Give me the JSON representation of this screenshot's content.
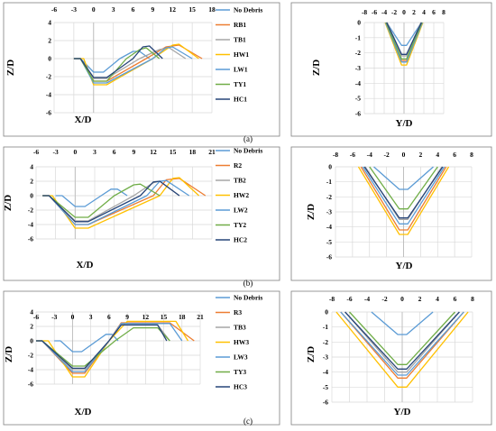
{
  "colors": {
    "No Debris": "#5b9bd5",
    "RB1": "#ed7d31",
    "TB1": "#a5a5a5",
    "HW1": "#ffc000",
    "LW1": "#5b9bd5",
    "TY1": "#70ad47",
    "HC1": "#264478",
    "R2": "#ed7d31",
    "TB2": "#a5a5a5",
    "HW2": "#ffc000",
    "LW2": "#5b9bd5",
    "TY2": "#70ad47",
    "HC2": "#264478",
    "R3": "#ed7d31",
    "TB3": "#a5a5a5",
    "HW3": "#ffc000",
    "LW3": "#5b9bd5",
    "TY3": "#70ad47",
    "HC3": "#264478"
  },
  "panel_labels": [
    "(a)",
    "(b)",
    "(c)"
  ],
  "chart_data": [
    {
      "id": "a-long",
      "type": "line",
      "xlabel": "X/D",
      "ylabel": "Z/D",
      "xlim": [
        -6,
        18
      ],
      "ylim": [
        -6,
        4
      ],
      "xticks": [
        -6,
        -3,
        0,
        3,
        6,
        9,
        12,
        15,
        18
      ],
      "yticks": [
        4,
        2,
        0,
        -2,
        -4,
        -6
      ],
      "grid": true,
      "legend": "right",
      "legend_entries": [
        "No Debris",
        "RB1",
        "TB1",
        "HW1",
        "LW1",
        "TY1",
        "HC1"
      ],
      "series": [
        {
          "name": "No Debris",
          "x": [
            -3,
            -2,
            0,
            1.5,
            4,
            6,
            7,
            8.5
          ],
          "y": [
            0,
            0,
            -1.5,
            -1.5,
            0,
            0.8,
            0.8,
            0
          ]
        },
        {
          "name": "RB1",
          "x": [
            -3,
            -2,
            0,
            2,
            8,
            11,
            13,
            16.5
          ],
          "y": [
            0,
            0,
            -2.5,
            -2.5,
            0,
            1.3,
            1.5,
            0
          ]
        },
        {
          "name": "TB1",
          "x": [
            -3,
            -2,
            0,
            2,
            7,
            10,
            11.5,
            14
          ],
          "y": [
            0,
            0,
            -2.2,
            -2.2,
            0,
            1,
            1.2,
            0
          ]
        },
        {
          "name": "HW1",
          "x": [
            -3,
            -1.5,
            0,
            2,
            9,
            12,
            13,
            16
          ],
          "y": [
            0,
            0,
            -2.9,
            -2.9,
            0,
            1.5,
            1.6,
            0
          ]
        },
        {
          "name": "LW1",
          "x": [
            -3,
            -2,
            0,
            2,
            9,
            11,
            12,
            15
          ],
          "y": [
            0,
            0,
            -2.7,
            -2.7,
            0,
            1.2,
            1.3,
            0
          ]
        },
        {
          "name": "TY1",
          "x": [
            -3,
            -2,
            0,
            2,
            5,
            7,
            8,
            10
          ],
          "y": [
            0,
            0,
            -2.5,
            -2.5,
            0,
            1,
            1.2,
            0
          ]
        },
        {
          "name": "HC1",
          "x": [
            -3,
            -2,
            0,
            2,
            6,
            7.5,
            8.5,
            10.5
          ],
          "y": [
            0,
            0,
            -2.1,
            -2.1,
            0,
            1.3,
            1.4,
            0
          ]
        }
      ]
    },
    {
      "id": "a-trans",
      "type": "line",
      "xlabel": "Y/D",
      "ylabel": "Z/D",
      "xlim": [
        -8,
        8
      ],
      "ylim": [
        -6,
        0
      ],
      "xticks": [
        -8,
        -6,
        -4,
        -2,
        0,
        2,
        4,
        6,
        8
      ],
      "yticks": [
        0,
        -1,
        -2,
        -3,
        -4,
        -5,
        -6
      ],
      "grid": true,
      "series": [
        {
          "name": "No Debris",
          "x": [
            -3.5,
            -0.5,
            0.5,
            3.5
          ],
          "y": [
            0,
            -1.5,
            -1.5,
            0
          ]
        },
        {
          "name": "RB1",
          "x": [
            -3.6,
            -0.5,
            0.5,
            3.6
          ],
          "y": [
            0,
            -2.5,
            -2.5,
            0
          ]
        },
        {
          "name": "TB1",
          "x": [
            -3.4,
            -0.5,
            0.5,
            3.4
          ],
          "y": [
            0,
            -2.2,
            -2.2,
            0
          ]
        },
        {
          "name": "HW1",
          "x": [
            -3.8,
            -0.5,
            0.5,
            3.8
          ],
          "y": [
            0,
            -2.8,
            -2.8,
            0
          ]
        },
        {
          "name": "LW1",
          "x": [
            -3.7,
            -0.5,
            0.5,
            3.7
          ],
          "y": [
            0,
            -2.6,
            -2.6,
            0
          ]
        },
        {
          "name": "TY1",
          "x": [
            -3.6,
            -0.5,
            0.5,
            3.6
          ],
          "y": [
            0,
            -2.4,
            -2.4,
            0
          ]
        },
        {
          "name": "HC1",
          "x": [
            -3.5,
            -0.5,
            0.5,
            3.5
          ],
          "y": [
            0,
            -2.1,
            -2.1,
            0
          ]
        }
      ]
    },
    {
      "id": "b-long",
      "type": "line",
      "xlabel": "X/D",
      "ylabel": "Z/D",
      "xlim": [
        -6,
        21
      ],
      "ylim": [
        -6,
        4
      ],
      "xticks": [
        -6,
        -3,
        0,
        3,
        6,
        9,
        12,
        15,
        18,
        21
      ],
      "yticks": [
        4,
        2,
        0,
        -2,
        -4,
        -6
      ],
      "grid": true,
      "legend": "right",
      "legend_entries": [
        "No Debris",
        "R2",
        "TB2",
        "HW2",
        "LW2",
        "TY2",
        "HC2"
      ],
      "series": [
        {
          "name": "No Debris",
          "x": [
            -3,
            -2,
            0,
            1.5,
            4,
            5.5,
            6.5,
            8
          ],
          "y": [
            0,
            0,
            -1.5,
            -1.5,
            0,
            0.9,
            0.9,
            0
          ]
        },
        {
          "name": "R2",
          "x": [
            -5,
            -4,
            0,
            2,
            12,
            14,
            16,
            20
          ],
          "y": [
            0,
            0,
            -4,
            -4,
            0,
            2.2,
            2.4,
            0
          ]
        },
        {
          "name": "TB2",
          "x": [
            -5,
            -4,
            0,
            2,
            9,
            12,
            13,
            16
          ],
          "y": [
            0,
            0,
            -3.5,
            -3.5,
            0,
            1.8,
            2,
            0
          ]
        },
        {
          "name": "HW2",
          "x": [
            -5,
            -3.5,
            0,
            2,
            13,
            15,
            16,
            19
          ],
          "y": [
            0,
            0,
            -4.5,
            -4.5,
            0,
            2.4,
            2.5,
            0
          ]
        },
        {
          "name": "LW2",
          "x": [
            -5,
            -4,
            0,
            2,
            11,
            13,
            14,
            17.5
          ],
          "y": [
            0,
            0,
            -4,
            -4,
            0,
            2,
            2.1,
            0
          ]
        },
        {
          "name": "TY2",
          "x": [
            -5,
            -4,
            0,
            2,
            6,
            9,
            10,
            13
          ],
          "y": [
            0,
            0,
            -3,
            -3,
            0,
            1.5,
            1.6,
            0
          ]
        },
        {
          "name": "HC2",
          "x": [
            -5,
            -4,
            0,
            2,
            10,
            12,
            13,
            16
          ],
          "y": [
            0,
            0,
            -3.6,
            -3.6,
            0,
            1.9,
            2,
            0
          ]
        }
      ]
    },
    {
      "id": "b-trans",
      "type": "line",
      "xlabel": "Y/D",
      "ylabel": "Z/D",
      "xlim": [
        -8,
        8
      ],
      "ylim": [
        -6,
        0
      ],
      "xticks": [
        -8,
        -6,
        -4,
        -2,
        0,
        2,
        4,
        6,
        8
      ],
      "yticks": [
        0,
        -1,
        -2,
        -3,
        -4,
        -5,
        -6
      ],
      "grid": true,
      "series": [
        {
          "name": "No Debris",
          "x": [
            -3.5,
            -0.5,
            0.5,
            3.5
          ],
          "y": [
            0,
            -1.5,
            -1.5,
            0
          ]
        },
        {
          "name": "R2",
          "x": [
            -5,
            -0.5,
            0.5,
            5
          ],
          "y": [
            0,
            -4.2,
            -4.2,
            0
          ]
        },
        {
          "name": "TB2",
          "x": [
            -4.5,
            -0.5,
            0.5,
            4.5
          ],
          "y": [
            0,
            -3.5,
            -3.5,
            0
          ]
        },
        {
          "name": "HW2",
          "x": [
            -5.3,
            -0.5,
            0.5,
            5.3
          ],
          "y": [
            0,
            -4.5,
            -4.5,
            0
          ]
        },
        {
          "name": "LW2",
          "x": [
            -4.8,
            -0.5,
            0.5,
            4.8
          ],
          "y": [
            0,
            -3.8,
            -3.8,
            0
          ]
        },
        {
          "name": "TY2",
          "x": [
            -4,
            -0.5,
            0.5,
            4
          ],
          "y": [
            0,
            -2.8,
            -2.8,
            0
          ]
        },
        {
          "name": "HC2",
          "x": [
            -4.6,
            -0.5,
            0.5,
            4.6
          ],
          "y": [
            0,
            -3.4,
            -3.4,
            0
          ]
        }
      ]
    },
    {
      "id": "c-long",
      "type": "line",
      "xlabel": "X/D",
      "ylabel": "Z/D",
      "xlim": [
        -6,
        21
      ],
      "ylim": [
        -6,
        4
      ],
      "xticks": [
        -6,
        -3,
        0,
        3,
        6,
        9,
        12,
        15,
        18,
        21
      ],
      "yticks": [
        4,
        2,
        0,
        -2,
        -4,
        -6
      ],
      "grid": true,
      "legend": "right",
      "legend_entries": [
        "No Debris",
        "R3",
        "TB3",
        "HW3",
        "LW3",
        "TY3",
        "HC3"
      ],
      "series": [
        {
          "name": "No Debris",
          "x": [
            -3,
            -2,
            0,
            1.5,
            4,
            5.5,
            6.5,
            7.5
          ],
          "y": [
            0,
            0,
            -1.5,
            -1.5,
            0,
            0.9,
            0.9,
            0
          ]
        },
        {
          "name": "R3",
          "x": [
            -6,
            -5,
            0,
            2,
            6,
            8,
            16,
            20
          ],
          "y": [
            0,
            0,
            -4.5,
            -4.5,
            0,
            2.5,
            2.5,
            0
          ]
        },
        {
          "name": "TB3",
          "x": [
            -6,
            -5,
            0,
            2,
            6,
            8,
            14,
            16
          ],
          "y": [
            0,
            0,
            -4,
            -4,
            0,
            2.2,
            2.2,
            0
          ]
        },
        {
          "name": "HW3",
          "x": [
            -6,
            -4,
            0,
            2,
            6,
            9,
            17,
            19
          ],
          "y": [
            0,
            0,
            -5,
            -5,
            0,
            2.7,
            2.7,
            0
          ]
        },
        {
          "name": "LW3",
          "x": [
            -6,
            -5,
            0,
            2,
            6,
            8,
            16,
            18
          ],
          "y": [
            0,
            0,
            -4.3,
            -4.3,
            0,
            2.4,
            2.4,
            0
          ]
        },
        {
          "name": "TY3",
          "x": [
            -6,
            -5,
            0,
            2,
            7,
            10,
            14,
            16
          ],
          "y": [
            0,
            0,
            -3.5,
            -3.5,
            0,
            1.8,
            1.8,
            0
          ]
        },
        {
          "name": "HC3",
          "x": [
            -6,
            -5,
            0,
            2,
            6,
            8,
            14,
            15.5
          ],
          "y": [
            0,
            0,
            -3.8,
            -3.8,
            0,
            2.2,
            2.2,
            0
          ]
        }
      ]
    },
    {
      "id": "c-trans",
      "type": "line",
      "xlabel": "Y/D",
      "ylabel": "Z/D",
      "xlim": [
        -8,
        8
      ],
      "ylim": [
        -6,
        0
      ],
      "xticks": [
        -8,
        -6,
        -4,
        -2,
        0,
        2,
        4,
        6,
        8
      ],
      "yticks": [
        0,
        -1,
        -2,
        -3,
        -4,
        -5,
        -6
      ],
      "grid": true,
      "series": [
        {
          "name": "No Debris",
          "x": [
            -3.5,
            -0.5,
            0.5,
            3.5
          ],
          "y": [
            0,
            -1.5,
            -1.5,
            0
          ]
        },
        {
          "name": "R3",
          "x": [
            -7,
            -0.5,
            0.5,
            7
          ],
          "y": [
            0,
            -4.4,
            -4.4,
            0
          ]
        },
        {
          "name": "TB3",
          "x": [
            -6.5,
            -0.5,
            0.5,
            6.5
          ],
          "y": [
            0,
            -4,
            -4,
            0
          ]
        },
        {
          "name": "HW3",
          "x": [
            -7.5,
            -0.5,
            0.5,
            7.5
          ],
          "y": [
            0,
            -5,
            -5,
            0
          ]
        },
        {
          "name": "LW3",
          "x": [
            -7,
            -0.5,
            0.5,
            7
          ],
          "y": [
            0,
            -4.2,
            -4.2,
            0
          ]
        },
        {
          "name": "TY3",
          "x": [
            -6,
            -0.5,
            0.5,
            6
          ],
          "y": [
            0,
            -3.5,
            -3.5,
            0
          ]
        },
        {
          "name": "HC3",
          "x": [
            -6.5,
            -0.5,
            0.5,
            6.5
          ],
          "y": [
            0,
            -3.8,
            -3.8,
            0
          ]
        }
      ]
    }
  ]
}
